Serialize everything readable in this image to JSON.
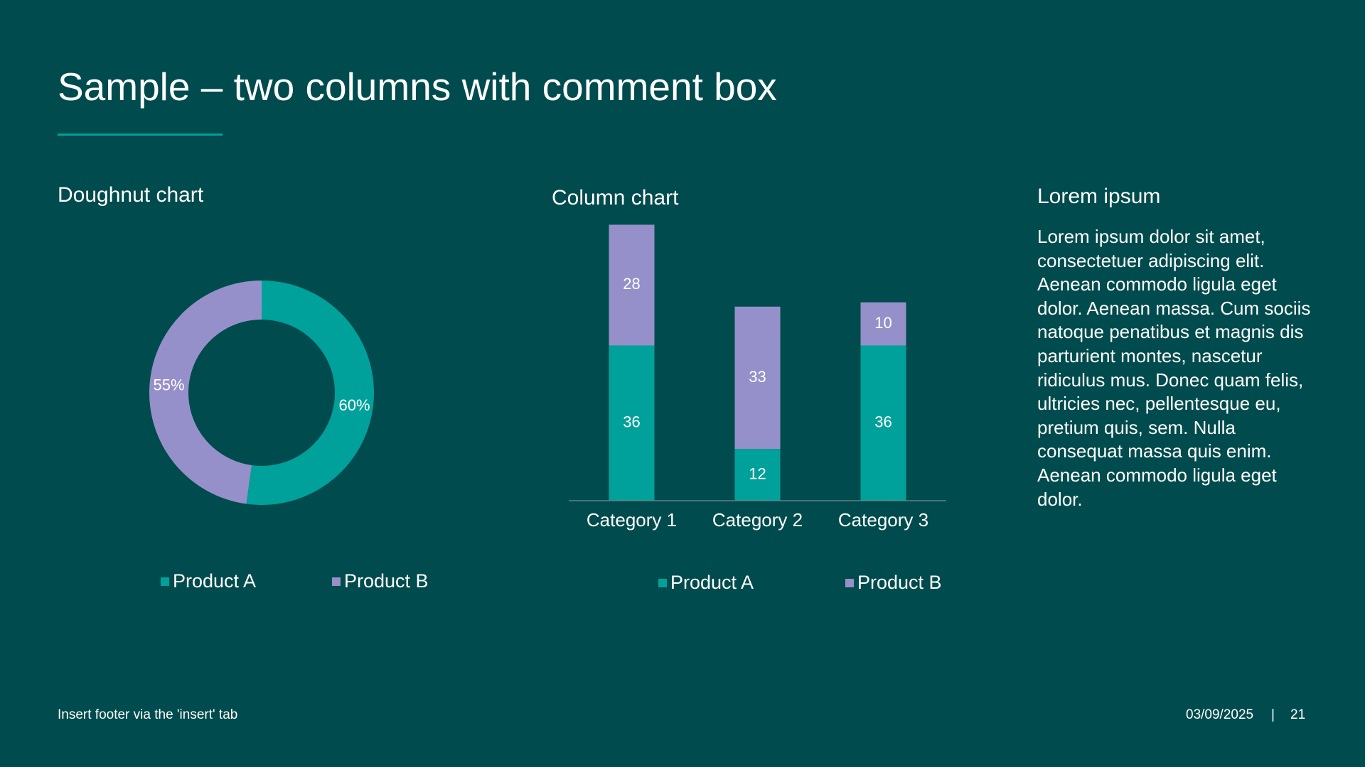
{
  "slide": {
    "title": "Sample – two columns with comment box",
    "footer": "Insert footer via the 'insert' tab",
    "date": "03/09/2025",
    "separator": "|",
    "page_number": "21"
  },
  "colors": {
    "background": "#004b4d",
    "product_a": "#00a19a",
    "product_b": "#9590ca",
    "axis": "#5d8586"
  },
  "comment": {
    "heading": "Lorem ipsum",
    "body": "Lorem ipsum dolor sit amet, consectetuer adipiscing elit. Aenean commodo ligula eget dolor. Aenean massa. Cum sociis natoque penatibus et magnis dis parturient montes, nascetur ridiculus mus. Donec quam felis, ultricies nec, pellentesque eu, pretium quis, sem. Nulla consequat massa quis enim. Aenean commodo ligula eget dolor."
  },
  "chart_data": [
    {
      "type": "pie",
      "variant": "doughnut",
      "title": "Doughnut chart",
      "slices": [
        {
          "name": "Product A",
          "value": 60,
          "label": "60%",
          "color": "#00a19a"
        },
        {
          "name": "Product B",
          "value": 55,
          "label": "55%",
          "color": "#9590ca"
        }
      ],
      "legend": {
        "position": "bottom",
        "entries": [
          "Product A",
          "Product B"
        ]
      }
    },
    {
      "type": "bar",
      "stacked": true,
      "title": "Column chart",
      "categories": [
        "Category 1",
        "Category 2",
        "Category 3"
      ],
      "series": [
        {
          "name": "Product A",
          "values": [
            36,
            12,
            36
          ],
          "color": "#00a19a"
        },
        {
          "name": "Product B",
          "values": [
            28,
            33,
            10
          ],
          "color": "#9590ca"
        }
      ],
      "ylim": [
        0,
        70
      ],
      "grid": false,
      "data_labels": true,
      "legend": {
        "position": "bottom",
        "entries": [
          "Product A",
          "Product B"
        ]
      }
    }
  ]
}
